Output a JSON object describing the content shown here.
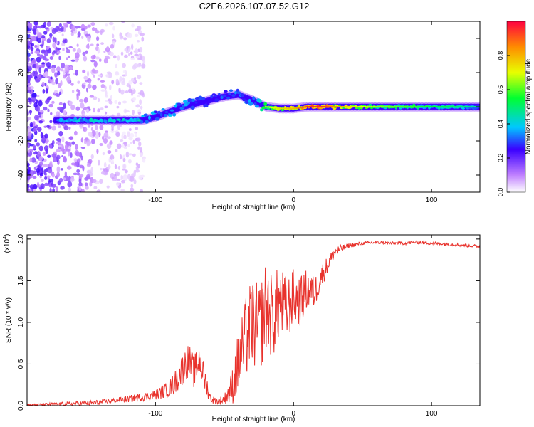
{
  "title": "C2E6.2026.107.07.52.G12",
  "chart_data": [
    {
      "type": "heatmap",
      "title": "C2E6.2026.107.07.52.G12",
      "xlabel": "Height of straight line (km)",
      "ylabel": "Frequency (Hz)",
      "xlim": [
        -193,
        135
      ],
      "ylim": [
        -50,
        50
      ],
      "xticks": [
        -100,
        0,
        100
      ],
      "yticks": [
        -40,
        -20,
        0,
        20,
        40
      ],
      "colorbar": {
        "label": "Normalized spectral amplitude",
        "range": [
          0,
          1
        ],
        "ticks": [
          0.0,
          0.2,
          0.4,
          0.6,
          0.8
        ]
      },
      "ridge": {
        "x": [
          -193,
          -170,
          -150,
          -130,
          -110,
          -100,
          -90,
          -80,
          -70,
          -60,
          -50,
          -40,
          -30,
          -20,
          -10,
          0,
          10,
          20,
          40,
          60,
          80,
          100,
          120,
          135
        ],
        "freq": [
          -8,
          -8,
          -8,
          -8,
          -8,
          -6,
          -3,
          0,
          2,
          4,
          6,
          7,
          4,
          0,
          -1,
          -1,
          0,
          0,
          0,
          0,
          0,
          0,
          0,
          0
        ],
        "amplitude": [
          0.3,
          0.35,
          0.4,
          0.4,
          0.4,
          0.35,
          0.35,
          0.35,
          0.3,
          0.3,
          0.3,
          0.35,
          0.35,
          0.55,
          0.65,
          0.7,
          0.85,
          0.85,
          0.65,
          0.55,
          0.5,
          0.45,
          0.4,
          0.35
        ]
      }
    },
    {
      "type": "line",
      "xlabel": "Height of straight line (km)",
      "ylabel": "SNR (10 * v/v)",
      "multiplier_label": "(x10",
      "multiplier_exponent": "4",
      "multiplier_suffix": ")",
      "xlim": [
        -193,
        135
      ],
      "ylim": [
        0,
        2.05
      ],
      "xticks": [
        -100,
        0,
        100
      ],
      "yticks": [
        0.0,
        0.5,
        1.0,
        1.5,
        2.0
      ],
      "series": [
        {
          "name": "SNR",
          "color": "#e8322c",
          "x": [
            -193,
            -170,
            -150,
            -140,
            -130,
            -120,
            -110,
            -100,
            -90,
            -85,
            -80,
            -76,
            -72,
            -68,
            -64,
            -60,
            -55,
            -50,
            -45,
            -40,
            -35,
            -30,
            -25,
            -20,
            -15,
            -10,
            -5,
            0,
            5,
            10,
            15,
            20,
            25,
            30,
            40,
            50,
            60,
            70,
            80,
            90,
            100,
            110,
            120,
            135
          ],
          "y": [
            0.01,
            0.02,
            0.03,
            0.04,
            0.06,
            0.08,
            0.1,
            0.13,
            0.2,
            0.3,
            0.45,
            0.55,
            0.4,
            0.55,
            0.3,
            0.08,
            0.05,
            0.08,
            0.2,
            0.5,
            0.8,
            1.0,
            0.9,
            1.2,
            1.05,
            1.25,
            1.15,
            1.3,
            1.25,
            1.4,
            1.35,
            1.55,
            1.7,
            1.85,
            1.92,
            1.95,
            1.96,
            1.95,
            1.95,
            1.96,
            1.95,
            1.94,
            1.93,
            1.91
          ],
          "noise": [
            0.01,
            0.02,
            0.03,
            0.03,
            0.03,
            0.04,
            0.05,
            0.06,
            0.1,
            0.15,
            0.2,
            0.2,
            0.2,
            0.2,
            0.15,
            0.05,
            0.04,
            0.06,
            0.2,
            0.4,
            0.5,
            0.55,
            0.55,
            0.55,
            0.5,
            0.45,
            0.4,
            0.35,
            0.3,
            0.25,
            0.2,
            0.15,
            0.1,
            0.06,
            0.03,
            0.02,
            0.02,
            0.02,
            0.02,
            0.02,
            0.02,
            0.02,
            0.02,
            0.02
          ]
        }
      ]
    }
  ]
}
